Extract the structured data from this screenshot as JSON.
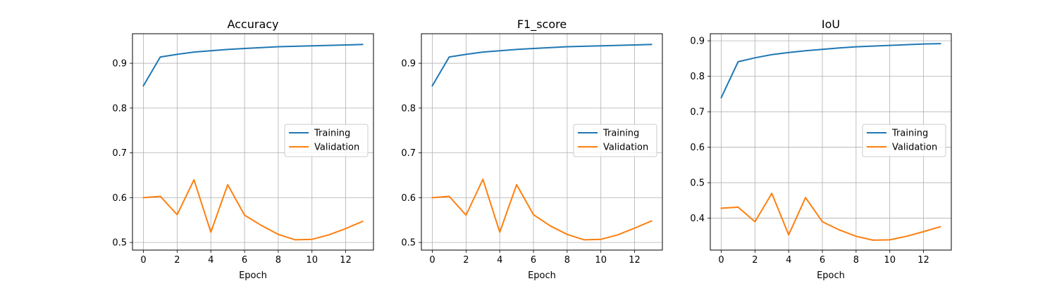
{
  "chart_data": [
    {
      "type": "line",
      "title": "Accuracy",
      "xlabel": "Epoch",
      "ylabel": "",
      "x": [
        0,
        1,
        2,
        3,
        4,
        5,
        6,
        7,
        8,
        9,
        10,
        11,
        12,
        13
      ],
      "xlim": [
        -0.65,
        13.65
      ],
      "ylim": [
        0.483,
        0.966
      ],
      "xticks": [
        0,
        2,
        4,
        6,
        8,
        10,
        12
      ],
      "yticks": [
        0.5,
        0.6,
        0.7,
        0.8,
        0.9
      ],
      "ytick_labels": [
        "0.5",
        "0.6",
        "0.7",
        "0.8",
        "0.9"
      ],
      "grid": true,
      "legend_position": "center-right",
      "series": [
        {
          "name": "Training",
          "color": "#1f77b4",
          "values": [
            0.85,
            0.914,
            0.92,
            0.925,
            0.928,
            0.931,
            0.933,
            0.935,
            0.937,
            0.938,
            0.939,
            0.94,
            0.941,
            0.942
          ]
        },
        {
          "name": "Validation",
          "color": "#ff7f0e",
          "values": [
            0.6,
            0.603,
            0.562,
            0.64,
            0.523,
            0.629,
            0.561,
            0.538,
            0.518,
            0.506,
            0.507,
            0.517,
            0.531,
            0.547
          ]
        }
      ]
    },
    {
      "type": "line",
      "title": "F1_score",
      "xlabel": "Epoch",
      "ylabel": "",
      "x": [
        0,
        1,
        2,
        3,
        4,
        5,
        6,
        7,
        8,
        9,
        10,
        11,
        12,
        13
      ],
      "xlim": [
        -0.65,
        13.65
      ],
      "ylim": [
        0.483,
        0.966
      ],
      "xticks": [
        0,
        2,
        4,
        6,
        8,
        10,
        12
      ],
      "yticks": [
        0.5,
        0.6,
        0.7,
        0.8,
        0.9
      ],
      "ytick_labels": [
        "0.5",
        "0.6",
        "0.7",
        "0.8",
        "0.9"
      ],
      "grid": true,
      "legend_position": "center-right",
      "series": [
        {
          "name": "Training",
          "color": "#1f77b4",
          "values": [
            0.85,
            0.914,
            0.92,
            0.925,
            0.928,
            0.931,
            0.933,
            0.935,
            0.937,
            0.938,
            0.939,
            0.94,
            0.941,
            0.942
          ]
        },
        {
          "name": "Validation",
          "color": "#ff7f0e",
          "values": [
            0.6,
            0.603,
            0.561,
            0.641,
            0.523,
            0.629,
            0.562,
            0.537,
            0.518,
            0.506,
            0.507,
            0.517,
            0.532,
            0.548
          ]
        }
      ]
    },
    {
      "type": "line",
      "title": "IoU",
      "xlabel": "Epoch",
      "ylabel": "",
      "x": [
        0,
        1,
        2,
        3,
        4,
        5,
        6,
        7,
        8,
        9,
        10,
        11,
        12,
        13
      ],
      "xlim": [
        -0.65,
        13.65
      ],
      "ylim": [
        0.31,
        0.92
      ],
      "xticks": [
        0,
        2,
        4,
        6,
        8,
        10,
        12
      ],
      "yticks": [
        0.4,
        0.5,
        0.6,
        0.7,
        0.8,
        0.9
      ],
      "ytick_labels": [
        "0.4",
        "0.5",
        "0.6",
        "0.7",
        "0.8",
        "0.9"
      ],
      "grid": true,
      "legend_position": "center-right",
      "series": [
        {
          "name": "Training",
          "color": "#1f77b4",
          "values": [
            0.74,
            0.841,
            0.852,
            0.861,
            0.867,
            0.872,
            0.876,
            0.88,
            0.883,
            0.885,
            0.887,
            0.889,
            0.891,
            0.892
          ]
        },
        {
          "name": "Validation",
          "color": "#ff7f0e",
          "values": [
            0.428,
            0.431,
            0.39,
            0.47,
            0.353,
            0.458,
            0.39,
            0.367,
            0.349,
            0.338,
            0.339,
            0.349,
            0.362,
            0.376
          ]
        }
      ]
    }
  ]
}
